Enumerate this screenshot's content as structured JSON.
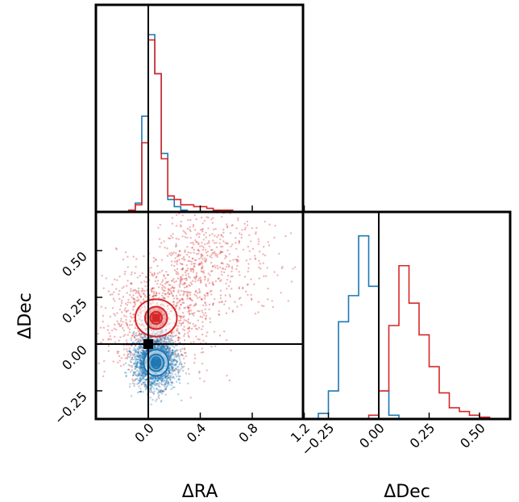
{
  "colors": {
    "blue": "#1f77b4",
    "red": "#d62728",
    "frame": "#000000"
  },
  "chart_data": {
    "type": "corner",
    "x_label": "ΔRA",
    "y_label": "ΔDec",
    "dec_label": "ΔDec",
    "ra_ticks": [
      "0.0",
      "0.4",
      "0.8",
      "1.2"
    ],
    "dec_ticks": [
      "0.50",
      "0.25",
      "0.00",
      "−0.25"
    ],
    "dec_hist_ticks": [
      "−0.25",
      "0.00",
      "0.25",
      "0.50"
    ],
    "ra_range": [
      -0.2,
      1.2
    ],
    "dec_range": [
      -0.4,
      0.7
    ],
    "truth": {
      "ra": 0.0,
      "dec": 0.0
    },
    "ra_hist": {
      "edges": [
        -0.15,
        -0.1,
        -0.05,
        0.0,
        0.05,
        0.1,
        0.15,
        0.2,
        0.25,
        0.3,
        0.35,
        0.4,
        0.45,
        0.5,
        0.55,
        0.6,
        0.65,
        0.7,
        0.75,
        0.8
      ],
      "series": [
        {
          "color": "blue",
          "counts": [
            0.01,
            0.05,
            0.54,
            1.0,
            0.78,
            0.33,
            0.07,
            0.03,
            0.01,
            0,
            0,
            0,
            0,
            0,
            0,
            0,
            0,
            0,
            0
          ]
        },
        {
          "color": "red",
          "counts": [
            0.01,
            0.04,
            0.39,
            0.97,
            0.78,
            0.3,
            0.09,
            0.07,
            0.04,
            0.04,
            0.03,
            0.03,
            0.02,
            0.01,
            0.01,
            0.01,
            0,
            0,
            0
          ]
        }
      ]
    },
    "dec_hist": {
      "edges": [
        -0.3,
        -0.25,
        -0.2,
        -0.15,
        -0.1,
        -0.05,
        0.0,
        0.05,
        0.1,
        0.15,
        0.2,
        0.25,
        0.3,
        0.35,
        0.4,
        0.45,
        0.5,
        0.55,
        0.6
      ],
      "series": [
        {
          "color": "blue",
          "counts": [
            0.03,
            0.15,
            0.52,
            0.66,
            0.98,
            0.71,
            0.15,
            0.02,
            0,
            0,
            0,
            0,
            0,
            0,
            0,
            0,
            0,
            0
          ]
        },
        {
          "color": "red",
          "counts": [
            0,
            0,
            0,
            0,
            0,
            0.02,
            0.15,
            0.5,
            0.82,
            0.62,
            0.45,
            0.28,
            0.14,
            0.06,
            0.04,
            0.02,
            0.01,
            0
          ]
        }
      ]
    },
    "clouds": [
      {
        "color": "red",
        "center": [
          0.06,
          0.13
        ],
        "spread": [
          0.2,
          0.15
        ],
        "tail": [
          0.35,
          0.32
        ]
      },
      {
        "color": "blue",
        "center": [
          0.05,
          -0.09
        ],
        "spread": [
          0.08,
          0.07
        ]
      }
    ],
    "contours": [
      {
        "color": "red",
        "center": [
          0.06,
          0.14
        ],
        "levels": [
          [
            0.16,
            0.1
          ],
          [
            0.085,
            0.06
          ],
          [
            0.045,
            0.033
          ]
        ]
      },
      {
        "color": "blue",
        "center": [
          0.06,
          -0.1
        ],
        "levels": [
          [
            0.095,
            0.07
          ],
          [
            0.06,
            0.045
          ],
          [
            0.035,
            0.03
          ]
        ]
      }
    ]
  }
}
